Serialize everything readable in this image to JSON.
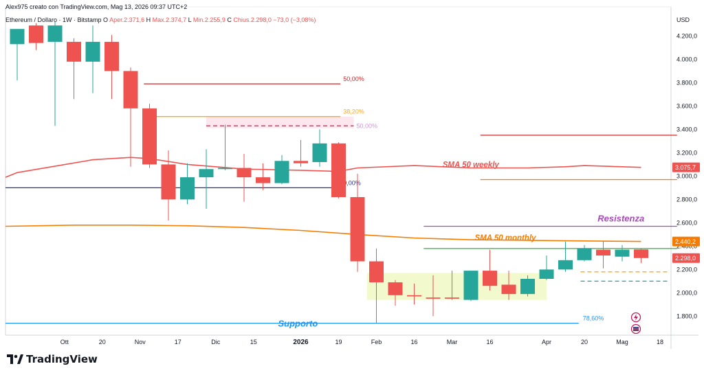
{
  "header": {
    "author_line": "Alex975 creato con TradingView.com, Mag 13, 2026 09:37 UTC+2",
    "symbol_line": "Ethereum / Dollaro · 1W · Bitstamp",
    "o_label": "O",
    "o_value": "Aper.2.371,6",
    "h_label": "H",
    "h_value": "Max.2.374,7",
    "l_label": "L",
    "l_value": "Min.2.255,9",
    "c_label": "C",
    "c_value": "Chius.2.298,0",
    "change": "−73,0 (−3,08%)"
  },
  "brand": {
    "name": "TradingView",
    "logo_icon": "tradingview-logo-icon"
  },
  "colors": {
    "up": "#26a69a",
    "down": "#ef5350",
    "sma_weekly": "#ef5350",
    "sma_monthly": "#f57c00",
    "support": "#2196f3",
    "resistance": "#ab47bc",
    "green_line": "#4caf50",
    "zone_pink": "#fce4ec",
    "zone_yellow": "#f0f8c8",
    "navy": "#283593"
  },
  "chart_data": {
    "type": "candlestick",
    "currency_label": "USD",
    "ylim": [
      1600,
      4320
    ],
    "y_ticks": [
      {
        "v": 4200,
        "t": "4.200,0"
      },
      {
        "v": 4000,
        "t": "4.000,0"
      },
      {
        "v": 3800,
        "t": "3.800,0"
      },
      {
        "v": 3600,
        "t": "3.600,0"
      },
      {
        "v": 3400,
        "t": "3.400,0"
      },
      {
        "v": 3200,
        "t": "3.200,0"
      },
      {
        "v": 3000,
        "t": "3.000,0"
      },
      {
        "v": 2800,
        "t": "2.800,0"
      },
      {
        "v": 2600,
        "t": "2.600,0"
      },
      {
        "v": 2400,
        "t": "2.400,0"
      },
      {
        "v": 2200,
        "t": "2.200,0"
      },
      {
        "v": 2000,
        "t": "2.000,0"
      },
      {
        "v": 1800,
        "t": "1.800,0"
      }
    ],
    "x_ticks": [
      {
        "i": 2.5,
        "t": "Ott"
      },
      {
        "i": 4.5,
        "t": "20"
      },
      {
        "i": 6.5,
        "t": "Nov"
      },
      {
        "i": 8.5,
        "t": "17"
      },
      {
        "i": 10.5,
        "t": "Dic"
      },
      {
        "i": 12.5,
        "t": "15"
      },
      {
        "i": 15,
        "t": "2026"
      },
      {
        "i": 17,
        "t": "19"
      },
      {
        "i": 19,
        "t": "Feb"
      },
      {
        "i": 21,
        "t": "16"
      },
      {
        "i": 23,
        "t": "Mar"
      },
      {
        "i": 25,
        "t": "16"
      },
      {
        "i": 28,
        "t": "Apr"
      },
      {
        "i": 30,
        "t": "20"
      },
      {
        "i": 32,
        "t": "Mag"
      },
      {
        "i": 34,
        "t": "18"
      }
    ],
    "candles": [
      {
        "o": 4130,
        "h": 4260,
        "l": 3820,
        "c": 4260
      },
      {
        "o": 4290,
        "h": 4310,
        "l": 4080,
        "c": 4140
      },
      {
        "o": 4150,
        "h": 4320,
        "l": 3430,
        "c": 4290
      },
      {
        "o": 4150,
        "h": 4180,
        "l": 3660,
        "c": 3980
      },
      {
        "o": 3980,
        "h": 4290,
        "l": 3710,
        "c": 4150
      },
      {
        "o": 4150,
        "h": 4210,
        "l": 3660,
        "c": 3900
      },
      {
        "o": 3900,
        "h": 3930,
        "l": 3080,
        "c": 3580
      },
      {
        "o": 3580,
        "h": 3620,
        "l": 3070,
        "c": 3100
      },
      {
        "o": 3100,
        "h": 3220,
        "l": 2620,
        "c": 2800
      },
      {
        "o": 2800,
        "h": 3110,
        "l": 2760,
        "c": 2990
      },
      {
        "o": 2990,
        "h": 3230,
        "l": 2720,
        "c": 3060
      },
      {
        "o": 3060,
        "h": 3440,
        "l": 3050,
        "c": 3070
      },
      {
        "o": 3070,
        "h": 3190,
        "l": 2780,
        "c": 2990
      },
      {
        "o": 2990,
        "h": 3110,
        "l": 2880,
        "c": 2940
      },
      {
        "o": 2940,
        "h": 3180,
        "l": 2930,
        "c": 3130
      },
      {
        "o": 3130,
        "h": 3310,
        "l": 3080,
        "c": 3110
      },
      {
        "o": 3120,
        "h": 3400,
        "l": 3080,
        "c": 3280
      },
      {
        "o": 3280,
        "h": 3290,
        "l": 2810,
        "c": 2820
      },
      {
        "o": 2820,
        "h": 3020,
        "l": 2180,
        "c": 2270
      },
      {
        "o": 2270,
        "h": 2380,
        "l": 1740,
        "c": 2090
      },
      {
        "o": 2090,
        "h": 2110,
        "l": 1890,
        "c": 1980
      },
      {
        "o": 1980,
        "h": 2080,
        "l": 1900,
        "c": 1970
      },
      {
        "o": 1960,
        "h": 2150,
        "l": 1800,
        "c": 1950
      },
      {
        "o": 1960,
        "h": 2190,
        "l": 1940,
        "c": 1950
      },
      {
        "o": 1940,
        "h": 2180,
        "l": 1930,
        "c": 2190
      },
      {
        "o": 2190,
        "h": 2370,
        "l": 2020,
        "c": 2060
      },
      {
        "o": 2070,
        "h": 2190,
        "l": 1940,
        "c": 1990
      },
      {
        "o": 1990,
        "h": 2150,
        "l": 1970,
        "c": 2120
      },
      {
        "o": 2120,
        "h": 2320,
        "l": 2110,
        "c": 2200
      },
      {
        "o": 2200,
        "h": 2440,
        "l": 2180,
        "c": 2280
      },
      {
        "o": 2280,
        "h": 2410,
        "l": 2270,
        "c": 2380
      },
      {
        "o": 2370,
        "h": 2440,
        "l": 2210,
        "c": 2320
      },
      {
        "o": 2310,
        "h": 2410,
        "l": 2270,
        "c": 2370
      },
      {
        "o": 2372,
        "h": 2375,
        "l": 2256,
        "c": 2298
      }
    ],
    "sma_weekly": {
      "name": "SMA 50 weekly",
      "x": [
        -2,
        0,
        4,
        6,
        7,
        9,
        12,
        15,
        17,
        18,
        21,
        24,
        27,
        29,
        30,
        33
      ],
      "y": [
        2990,
        3030,
        3140,
        3160,
        3150,
        3100,
        3060,
        3050,
        3040,
        3070,
        3090,
        3070,
        3070,
        3080,
        3090,
        3075
      ]
    },
    "sma_monthly": {
      "name": "SMA 50 monthly",
      "x": [
        -2,
        3,
        6,
        9,
        12,
        15,
        18,
        21,
        24,
        27,
        30,
        33
      ],
      "y": [
        2570,
        2580,
        2580,
        2575,
        2560,
        2535,
        2500,
        2470,
        2455,
        2450,
        2445,
        2440
      ]
    },
    "levels": [
      {
        "name": "fib-50-level",
        "v": 3790,
        "x1": 6.7,
        "x2": 17.1,
        "color": "#c62828",
        "label": "50,00%"
      },
      {
        "name": "fib-382-level",
        "v": 3510,
        "x1": 6.7,
        "x2": 17.1,
        "color": "#f9a825",
        "label": "38,20%"
      },
      {
        "name": "fib-0-level",
        "v": 2900,
        "x1": -2,
        "x2": 17.1,
        "color": "#283593",
        "label": "0,00%"
      },
      {
        "name": "fib-786-level",
        "v": 1740,
        "x1": -2,
        "x2": 29.7,
        "color": "#2196f3",
        "label": "78,60%"
      },
      {
        "name": "red-resistance-level",
        "v": 3350,
        "x1": 24.5,
        "x2": 34.9,
        "color": "#c62828",
        "label": ""
      },
      {
        "name": "orange-level",
        "v": 2970,
        "x1": 24.5,
        "x2": 34.9,
        "color": "#f57c00",
        "label": ""
      },
      {
        "name": "resistance-level",
        "v": 2570,
        "x1": 21.5,
        "x2": 34.9,
        "color": "#ab47bc",
        "label": ""
      },
      {
        "name": "green-level",
        "v": 2380,
        "x1": 21.5,
        "x2": 34.9,
        "color": "#4caf50",
        "label": ""
      }
    ],
    "dashed_levels": [
      {
        "name": "pink-dashed-level",
        "v": 3430,
        "x1": 10,
        "x2": 17.8,
        "color": "#e91e63",
        "label": "50,00%"
      },
      {
        "name": "orange-dashed-level",
        "v": 2180,
        "x1": 29.8,
        "x2": 34.5,
        "color": "#f9a825",
        "label": ""
      },
      {
        "name": "cyan-dashed-level",
        "v": 2100,
        "x1": 29.8,
        "x2": 34.5,
        "color": "#00acc1",
        "label": ""
      }
    ],
    "zones": [
      {
        "name": "supply-zone",
        "x1": 10,
        "x2": 17.8,
        "y1": 3410,
        "y2": 3510,
        "color": "#fce4ec"
      },
      {
        "name": "accumulation-zone",
        "x1": 18.5,
        "x2": 28,
        "y1": 1940,
        "y2": 2170,
        "color": "#f0f8c8"
      }
    ],
    "annotations": [
      {
        "name": "sma-weekly-label",
        "text": "SMA 50 weekly",
        "x": 22.5,
        "v": 3075,
        "color": "#ef5350"
      },
      {
        "name": "sma-monthly-label",
        "text": "SMA 50 monthly",
        "x": 24.2,
        "v": 2450,
        "color": "#f57c00"
      },
      {
        "name": "resistance-label",
        "text": "Resistenza",
        "x": 30.7,
        "v": 2610,
        "color": "#ab47bc"
      },
      {
        "name": "support-label",
        "text": "Supporto",
        "x": 13.8,
        "v": 1710,
        "color": "#2196f3"
      }
    ],
    "price_tags": [
      {
        "name": "sma-weekly-price-tag",
        "v": 3075,
        "t": "3.075,7",
        "color": "#ef5350"
      },
      {
        "name": "sma-monthly-price-tag",
        "v": 2440,
        "t": "2.440,2",
        "color": "#f57c00"
      },
      {
        "name": "close-price-tag",
        "v": 2298,
        "t": "2.298,0",
        "color": "#ef5350"
      }
    ]
  }
}
